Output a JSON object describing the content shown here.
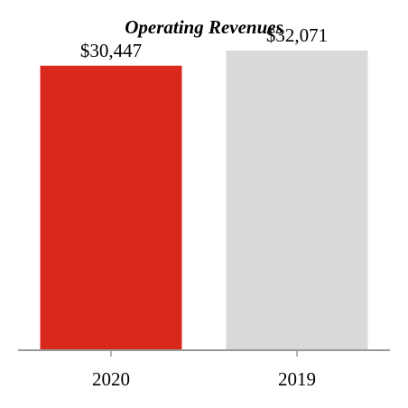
{
  "chart_data": {
    "type": "bar",
    "title": "Operating Revenues",
    "categories": [
      "2020",
      "2019"
    ],
    "values": [
      30447,
      32071
    ],
    "value_labels": [
      "$30,447",
      "$32,071"
    ],
    "xlabel": "",
    "ylabel": "",
    "ylim": [
      0,
      34000
    ],
    "grid": false,
    "legend": "none",
    "colors": [
      "#d9291c",
      "#d8d9d8"
    ],
    "axis_color": "#9a9a9a"
  }
}
